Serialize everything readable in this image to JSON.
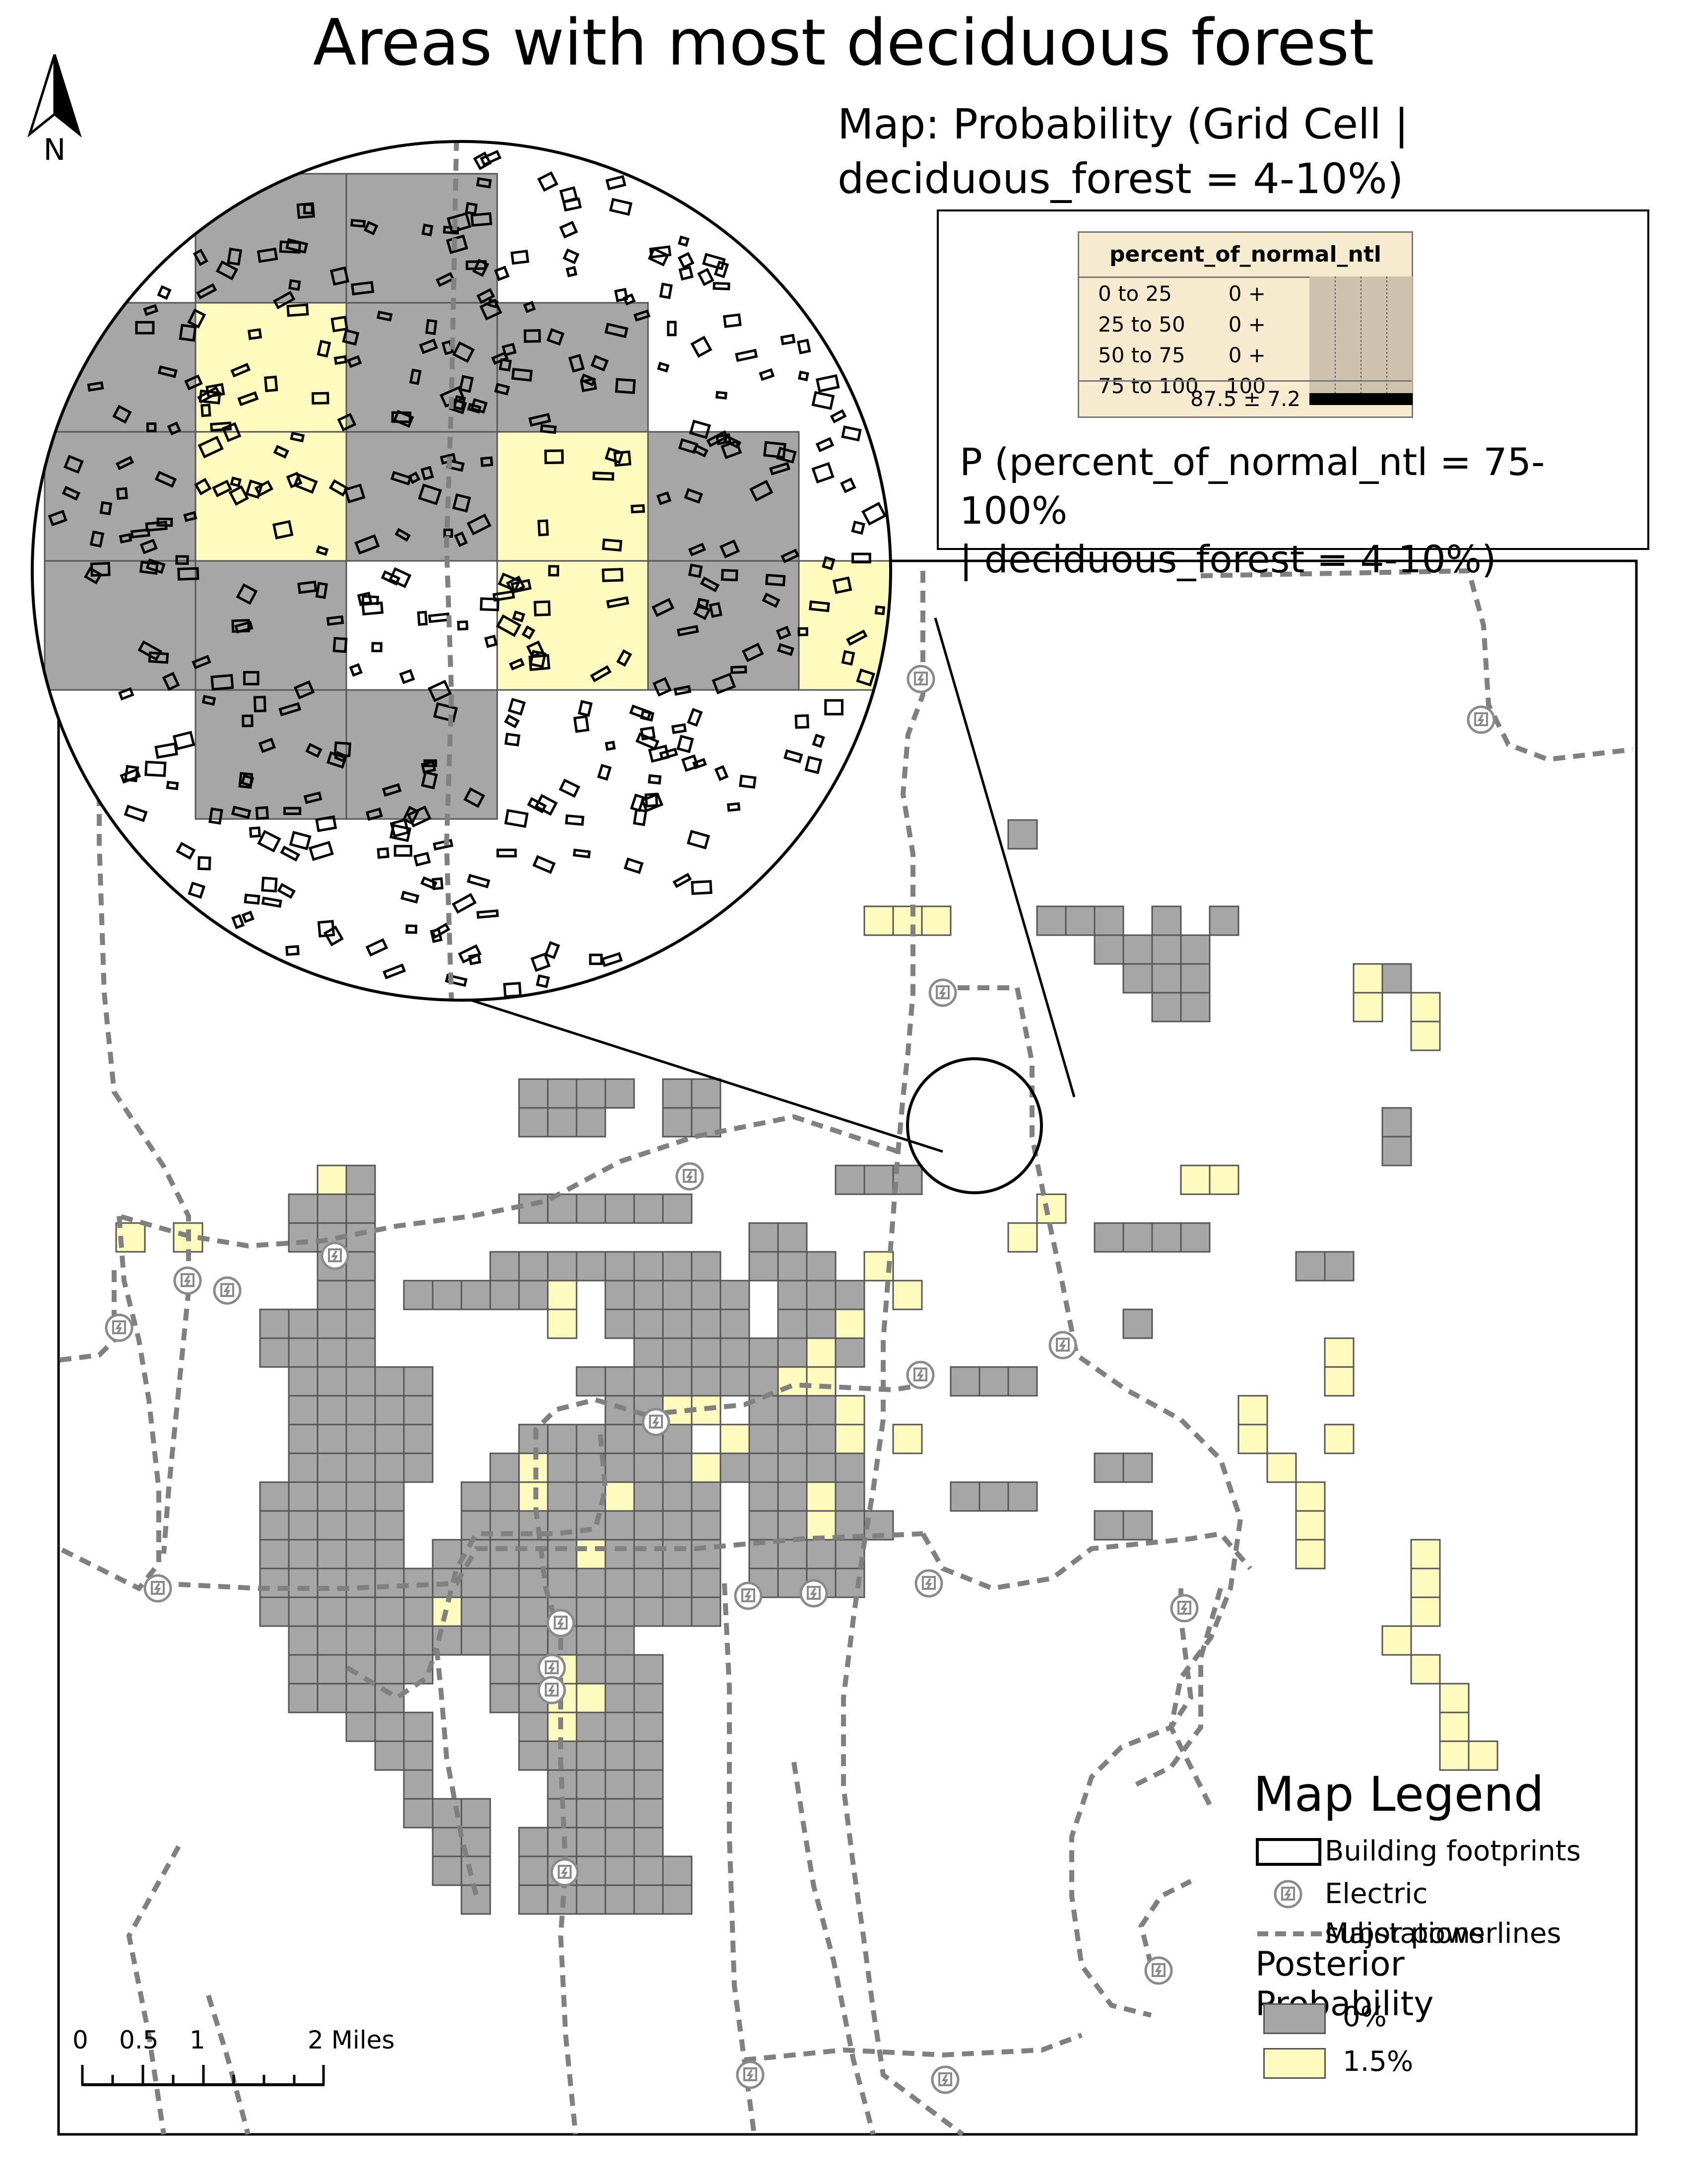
{
  "title": "Areas with most deciduous forest",
  "map_subtitle": {
    "line1": "Map: Probability (Grid Cell |",
    "line2": "deciduous_forest = 4-10%)"
  },
  "north_arrow": {
    "label": "N",
    "icon": "north-arrow-icon"
  },
  "network_node": {
    "title": "percent_of_normal_ntl",
    "states": [
      {
        "label": "0 to 25",
        "value": "0 +",
        "belief": 0
      },
      {
        "label": "25 to 50",
        "value": "0 +",
        "belief": 0
      },
      {
        "label": "50 to 75",
        "value": "0 +",
        "belief": 0
      },
      {
        "label": "75 to 100",
        "value": "100",
        "belief": 100
      }
    ],
    "expected_value": "87.5 ± 7.2"
  },
  "posterior_query": {
    "line1": "P (percent_of_normal_ntl = 75-100%",
    "line2": "| deciduous_forest = 4-10%)"
  },
  "legend": {
    "title": "Map Legend",
    "building_footprints": "Building footprints",
    "electric_substations": "Electric substations",
    "major_powerlines": "Major powerlines",
    "posterior_title": "Posterior Probability",
    "classes": [
      {
        "label": "0%",
        "color": "#a6a6a6"
      },
      {
        "label": "1.5%",
        "color": "#fffabe"
      }
    ]
  },
  "scale_bar": {
    "labels": [
      "0",
      "0.5",
      "1",
      "2 Miles"
    ],
    "unit": "Miles"
  },
  "colors": {
    "grid_gray": "#a6a6a6",
    "grid_yellow": "#fffabe",
    "powerline": "#808080",
    "outline": "#000000"
  }
}
